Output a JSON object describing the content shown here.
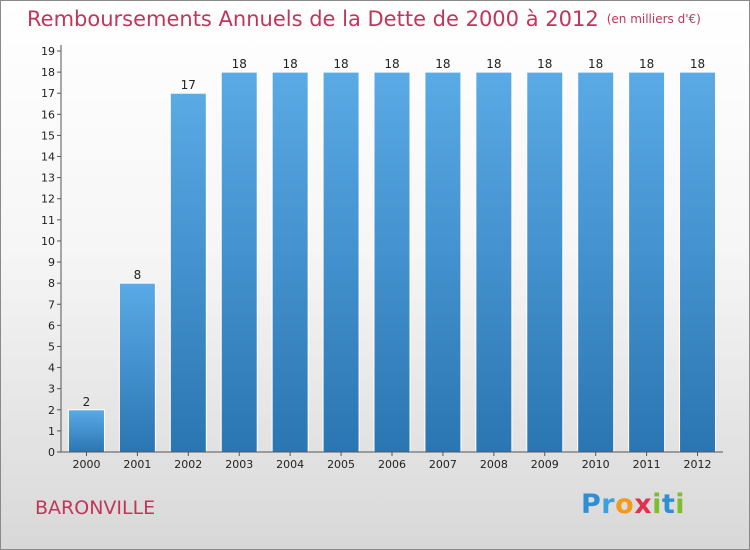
{
  "header": {
    "title": "Remboursements Annuels de la Dette de 2000 à 2012",
    "units": "(en milliers d'€)"
  },
  "footer": {
    "city": "BARONVILLE",
    "logo_text": "Proxiti",
    "logo_letters": [
      {
        "ch": "P",
        "color": "#2e8fd6"
      },
      {
        "ch": "r",
        "color": "#3aa0e0"
      },
      {
        "ch": "o",
        "color": "#f29a1a"
      },
      {
        "ch": "x",
        "color": "#e2304d"
      },
      {
        "ch": "i",
        "color": "#7cbf2a"
      },
      {
        "ch": "t",
        "color": "#2e8fd6"
      },
      {
        "ch": "i",
        "color": "#7cbf2a"
      }
    ]
  },
  "chart_data": {
    "type": "bar",
    "title": "Remboursements Annuels de la Dette de 2000 à 2012",
    "subtitle": "(en milliers d'€)",
    "xlabel": "",
    "ylabel": "",
    "categories": [
      "2000",
      "2001",
      "2002",
      "2003",
      "2004",
      "2005",
      "2006",
      "2007",
      "2008",
      "2009",
      "2010",
      "2011",
      "2012"
    ],
    "values": [
      2,
      8,
      17,
      18,
      18,
      18,
      18,
      18,
      18,
      18,
      18,
      18,
      18
    ],
    "yticks": [
      0,
      1,
      2,
      3,
      4,
      5,
      6,
      7,
      8,
      9,
      10,
      11,
      12,
      13,
      14,
      15,
      16,
      17,
      18,
      19
    ],
    "ylim": [
      0,
      19
    ],
    "grid": false,
    "legend": "none",
    "bar_color": "#4f9fdc",
    "bar_color_dark": "#2874b0"
  }
}
